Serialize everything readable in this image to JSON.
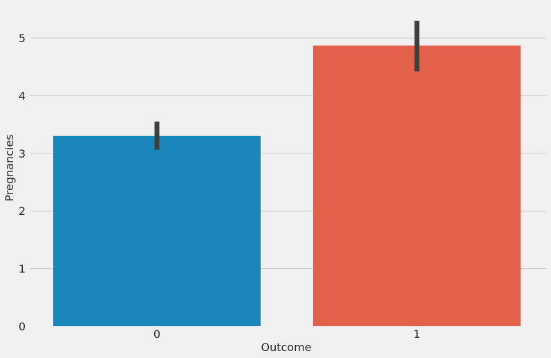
{
  "chart_data": {
    "type": "bar",
    "categories": [
      "0",
      "1"
    ],
    "values": [
      3.3,
      4.87
    ],
    "error_low": [
      3.06,
      4.42
    ],
    "error_high": [
      3.55,
      5.3
    ],
    "colors": [
      "#1a86bc",
      "#e4604a"
    ],
    "error_color": "#3f3f3f",
    "xlabel": "Outcome",
    "ylabel": "Pregnancies",
    "ylim": [
      0,
      5.5
    ],
    "yticks": [
      "0",
      "1",
      "2",
      "3",
      "4",
      "5"
    ],
    "grid": "horizontal",
    "background": "#f0f0f0",
    "grid_color": "#cbcbcb"
  }
}
